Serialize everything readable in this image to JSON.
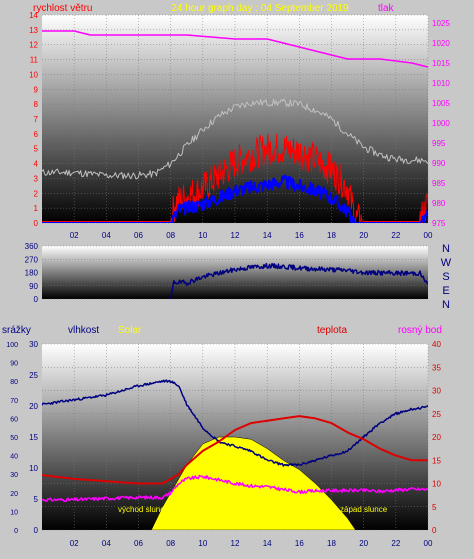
{
  "chart_data": [
    {
      "type": "line",
      "title": "24 hour graph day : 04 September 2019",
      "left_axis_label": "rychlost větru",
      "right_axis_label": "tlak",
      "x_ticks": [
        "02",
        "04",
        "06",
        "08",
        "10",
        "12",
        "14",
        "16",
        "18",
        "20",
        "22",
        "00"
      ],
      "x_range_hours": [
        0,
        24
      ],
      "left_ylim": [
        0,
        14
      ],
      "left_ticks": [
        0,
        1,
        2,
        3,
        4,
        5,
        6,
        7,
        8,
        9,
        10,
        11,
        12,
        13,
        14
      ],
      "right_ylim": [
        975,
        1027
      ],
      "right_ticks": [
        975,
        980,
        985,
        990,
        995,
        1000,
        1005,
        1010,
        1015,
        1020,
        1025
      ],
      "series": [
        {
          "axis": "right",
          "color": "#ff00ff",
          "points": [
            [
              0,
              1023
            ],
            [
              2,
              1023
            ],
            [
              3,
              1022
            ],
            [
              6,
              1022
            ],
            [
              9,
              1022
            ],
            [
              12,
              1021
            ],
            [
              14,
              1021
            ],
            [
              15,
              1020
            ],
            [
              16,
              1019
            ],
            [
              18,
              1017
            ],
            [
              19,
              1016
            ],
            [
              21,
              1016
            ],
            [
              23,
              1015
            ],
            [
              24,
              1014
            ]
          ]
        },
        {
          "axis": "left",
          "color": "#c0c0c0",
          "points": [
            [
              0,
              3.4
            ],
            [
              2,
              3.4
            ],
            [
              4,
              3.2
            ],
            [
              6,
              3.2
            ],
            [
              7,
              3.3
            ],
            [
              8,
              4
            ],
            [
              9,
              5.2
            ],
            [
              10,
              6.3
            ],
            [
              11,
              7.2
            ],
            [
              12,
              7.8
            ],
            [
              13,
              8.1
            ],
            [
              14,
              8.1
            ],
            [
              15,
              8.1
            ],
            [
              16,
              8.0
            ],
            [
              17,
              7.6
            ],
            [
              18,
              7.0
            ],
            [
              19,
              6.0
            ],
            [
              20,
              5.1
            ],
            [
              21,
              4.6
            ],
            [
              22,
              4.3
            ],
            [
              24,
              4.2
            ]
          ]
        },
        {
          "axis": "left",
          "color": "#ff0000",
          "points": [
            [
              0,
              0.1
            ],
            [
              8,
              0.1
            ],
            [
              8.3,
              1.4
            ],
            [
              9,
              1.8
            ],
            [
              10,
              2.3
            ],
            [
              11,
              3.2
            ],
            [
              12,
              4.1
            ],
            [
              13,
              4.6
            ],
            [
              14,
              5.0
            ],
            [
              15,
              5.0
            ],
            [
              16,
              4.8
            ],
            [
              17,
              4.3
            ],
            [
              18,
              3.6
            ],
            [
              19,
              2.4
            ],
            [
              19.5,
              0.3
            ],
            [
              20,
              0.1
            ],
            [
              23.5,
              0.1
            ],
            [
              24,
              1.4
            ]
          ]
        },
        {
          "axis": "left",
          "color": "#0000ff",
          "points": [
            [
              0,
              0
            ],
            [
              8,
              0
            ],
            [
              8.5,
              0.9
            ],
            [
              9,
              1.0
            ],
            [
              10,
              1.3
            ],
            [
              11,
              1.7
            ],
            [
              12,
              2.2
            ],
            [
              13,
              2.4
            ],
            [
              14,
              2.6
            ],
            [
              15,
              2.8
            ],
            [
              16,
              2.5
            ],
            [
              17,
              2.2
            ],
            [
              18,
              1.7
            ],
            [
              19,
              0.8
            ],
            [
              19.5,
              0
            ],
            [
              23.5,
              0
            ],
            [
              24,
              0.5
            ]
          ]
        }
      ]
    },
    {
      "type": "line",
      "y_ticks": [
        0,
        90,
        180,
        270,
        360
      ],
      "ylim": [
        0,
        360
      ],
      "right_labels": [
        "N",
        "W",
        "S",
        "E",
        "N"
      ],
      "series": [
        {
          "color": "#000080",
          "points": [
            [
              8,
              0
            ],
            [
              8.2,
              115
            ],
            [
              9,
              110
            ],
            [
              10,
              150
            ],
            [
              11,
              175
            ],
            [
              12,
              200
            ],
            [
              13,
              215
            ],
            [
              14,
              225
            ],
            [
              15,
              220
            ],
            [
              16,
              210
            ],
            [
              17,
              205
            ],
            [
              18,
              200
            ],
            [
              19,
              195
            ],
            [
              20,
              180
            ],
            [
              22,
              175
            ],
            [
              23.5,
              175
            ],
            [
              24,
              95
            ]
          ]
        }
      ]
    },
    {
      "type": "line",
      "labels": {
        "rain": "srážky",
        "humidity": "vlhkost",
        "solar": "Solar",
        "temperature": "teplota",
        "dew_point": "rosný bod"
      },
      "rain_ticks": [
        0,
        10,
        20,
        30,
        40,
        50,
        60,
        70,
        80,
        90,
        100
      ],
      "humidity_ticks": [
        0,
        5,
        10,
        15,
        20,
        25,
        30
      ],
      "temperature_ticks": [
        0,
        5,
        10,
        15,
        20,
        25,
        30,
        35,
        40
      ],
      "ylim_temperature": [
        0,
        40
      ],
      "sunrise_label": "východ slunce",
      "sunset_label": "západ slunce",
      "series": [
        {
          "name": "vlhkost",
          "color": "#000080",
          "scale": "temperature",
          "points": [
            [
              0,
              27
            ],
            [
              2,
              28
            ],
            [
              4,
              29
            ],
            [
              6,
              31
            ],
            [
              7.5,
              32
            ],
            [
              8,
              32
            ],
            [
              8.5,
              31
            ],
            [
              9,
              27
            ],
            [
              10,
              22
            ],
            [
              11,
              19
            ],
            [
              12,
              18
            ],
            [
              13,
              17
            ],
            [
              14,
              15
            ],
            [
              15,
              14
            ],
            [
              16,
              14
            ],
            [
              17,
              15
            ],
            [
              18,
              16
            ],
            [
              19,
              17
            ],
            [
              20,
              20
            ],
            [
              21,
              23
            ],
            [
              22,
              25
            ],
            [
              23,
              26
            ],
            [
              24,
              26.5
            ]
          ]
        },
        {
          "name": "teplota",
          "color": "#dd0000",
          "scale": "temperature",
          "points": [
            [
              0,
              11.8
            ],
            [
              2,
              11
            ],
            [
              4,
              10.5
            ],
            [
              6,
              10
            ],
            [
              7.5,
              10
            ],
            [
              8.5,
              12
            ],
            [
              9,
              14
            ],
            [
              10,
              17
            ],
            [
              11,
              19
            ],
            [
              12,
              21.5
            ],
            [
              13,
              23
            ],
            [
              14,
              23.5
            ],
            [
              15,
              24
            ],
            [
              16,
              24.5
            ],
            [
              17,
              24
            ],
            [
              18,
              23
            ],
            [
              19,
              21
            ],
            [
              20,
              19.5
            ],
            [
              21,
              17.5
            ],
            [
              22,
              16
            ],
            [
              23,
              15
            ],
            [
              24,
              15
            ]
          ]
        },
        {
          "name": "rosný bod",
          "color": "#ff00ff",
          "scale": "temperature",
          "points": [
            [
              0,
              6.5
            ],
            [
              2,
              6.5
            ],
            [
              4,
              6.8
            ],
            [
              6,
              7
            ],
            [
              7.5,
              7
            ],
            [
              8,
              8
            ],
            [
              8.5,
              10
            ],
            [
              9,
              11
            ],
            [
              10,
              11.5
            ],
            [
              11,
              10.8
            ],
            [
              12,
              10
            ],
            [
              13,
              9.5
            ],
            [
              14,
              9.3
            ],
            [
              15,
              8.7
            ],
            [
              16,
              8.2
            ],
            [
              17,
              8.4
            ],
            [
              18,
              8.5
            ],
            [
              19,
              8.5
            ],
            [
              20,
              8.5
            ],
            [
              21,
              8.3
            ],
            [
              22,
              8.6
            ],
            [
              23,
              8.8
            ],
            [
              24,
              8.7
            ]
          ]
        },
        {
          "name": "Solar",
          "color": "#ffff00",
          "scale": "temperature",
          "points": [
            [
              6.8,
              0
            ],
            [
              7.5,
              5
            ],
            [
              8,
              8
            ],
            [
              9,
              14
            ],
            [
              10,
              18.5
            ],
            [
              11,
              20
            ],
            [
              12,
              20
            ],
            [
              13,
              19.5
            ],
            [
              14,
              17.5
            ],
            [
              15,
              15
            ],
            [
              16,
              13
            ],
            [
              17,
              10
            ],
            [
              18,
              6.5
            ],
            [
              19,
              2.5
            ],
            [
              19.5,
              0
            ]
          ]
        }
      ]
    }
  ]
}
